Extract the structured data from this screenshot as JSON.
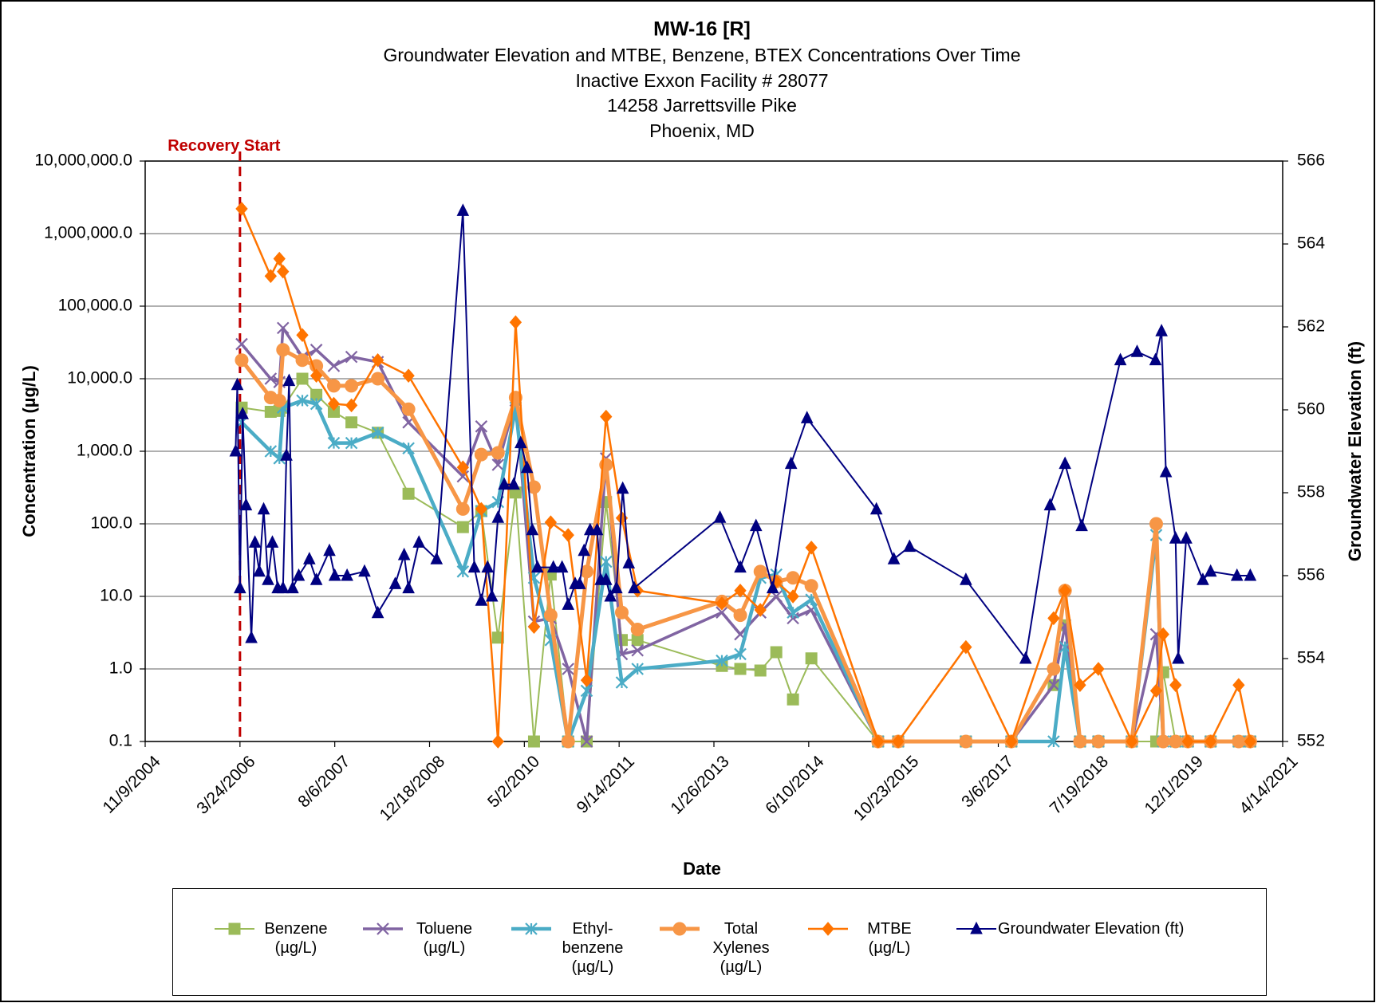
{
  "chart_data": {
    "type": "line",
    "title": "MW-16 [R]",
    "subtitle": [
      "Groundwater Elevation and MTBE, Benzene, BTEX Concentrations Over Time",
      "Inactive Exxon Facility # 28077",
      "14258 Jarrettsville Pike",
      "Phoenix, MD"
    ],
    "x_label": "Date",
    "y_label": "Concentration (µg/L)",
    "y2_label": "Groundwater Elevation (ft)",
    "log_y": true,
    "grid": true,
    "legend": "bottom",
    "annotations": [
      {
        "text": "Recovery Start",
        "x": "3/24/2006",
        "color": "#C00000"
      }
    ],
    "xlim": [
      "11/9/2004",
      "4/14/2021"
    ],
    "xticks": [
      "11/9/2004",
      "3/24/2006",
      "8/6/2007",
      "12/18/2008",
      "5/2/2010",
      "9/14/2011",
      "1/26/2013",
      "6/10/2014",
      "10/23/2015",
      "3/6/2017",
      "7/19/2018",
      "12/1/2019",
      "4/14/2021"
    ],
    "ylim": [
      0.1,
      10000000
    ],
    "yticks": [
      0.1,
      {
        "value": 1,
        "label": "1.0"
      },
      {
        "value": 10,
        "label": "10.0"
      },
      {
        "value": 100,
        "label": "100.0"
      },
      {
        "value": 1000,
        "label": "1,000.0"
      },
      {
        "value": 10000,
        "label": "10,000.0"
      },
      {
        "value": 100000,
        "label": "100,000.0"
      },
      {
        "value": 1000000,
        "label": "1,000,000.0"
      },
      {
        "value": 10000000,
        "label": "10,000,000.0"
      }
    ],
    "y2lim": [
      552,
      566
    ],
    "y2ticks": [
      552,
      554,
      556,
      558,
      560,
      562,
      564,
      566
    ],
    "x": [
      "4/2/2006",
      "9/2/2006",
      "10/18/2006",
      "11/6/2006",
      "2/16/2007",
      "5/1/2007",
      "8/1/2007",
      "11/2/2007",
      "3/20/2008",
      "8/29/2008",
      "6/12/2009",
      "9/17/2009",
      "12/14/2009",
      "3/17/2010",
      "6/22/2010",
      "9/18/2010",
      "12/19/2010",
      "3/27/2011",
      "7/7/2011",
      "9/28/2011",
      "12/20/2011",
      "3/9/2013",
      "6/14/2013",
      "9/28/2013",
      "12/21/2013",
      "3/19/2014",
      "6/24/2014",
      "6/11/2015",
      "9/25/2015",
      "9/16/2016",
      "5/14/2017",
      "12/23/2017",
      "2/21/2018",
      "5/11/2018",
      "8/16/2018",
      "2/8/2019",
      "6/17/2019",
      "7/24/2019",
      "9/27/2019",
      "12/1/2019",
      "3/30/2020",
      "8/25/2020",
      "10/25/2020"
    ],
    "series": [
      {
        "name": "Benzene (µg/L)",
        "color": "#9BBB59",
        "marker": "square",
        "values": [
          4000,
          3500,
          3600,
          4000,
          10000,
          6000,
          3500,
          2500,
          1800,
          260,
          90,
          150,
          2.7,
          270,
          0.1,
          20,
          0.1,
          0.1,
          200,
          2.5,
          2.5,
          1.1,
          1.0,
          0.95,
          1.7,
          0.38,
          1.4,
          0.1,
          0.1,
          0.1,
          0.1,
          0.6,
          4,
          0.1,
          0.1,
          0.1,
          0.1,
          0.9,
          0.1,
          0.1,
          0.1,
          0.1,
          0.1
        ]
      },
      {
        "name": "Toluene (µg/L)",
        "color": "#8064A2",
        "marker": "x",
        "values": [
          30000,
          10000,
          9000,
          50000,
          20000,
          25000,
          15000,
          20000,
          17000,
          2500,
          450,
          2200,
          650,
          5000,
          4.5,
          5,
          1.0,
          0.1,
          800,
          1.6,
          1.8,
          6,
          3,
          6,
          10,
          5,
          6.5,
          0.1,
          0.1,
          0.1,
          0.1,
          0.6,
          4,
          0.1,
          0.1,
          0.1,
          3,
          0.1,
          0.1,
          0.1,
          0.1,
          0.1,
          0.1
        ]
      },
      {
        "name": "Ethyl-benzene (µg/L)",
        "color": "#4BACC6",
        "marker": "asterisk",
        "values": [
          2500,
          1000,
          800,
          4000,
          5000,
          4500,
          1300,
          1300,
          1800,
          1100,
          22,
          150,
          200,
          4000,
          18,
          2.5,
          0.1,
          0.5,
          30,
          0.65,
          1.0,
          1.3,
          1.6,
          18,
          20,
          6,
          9,
          0.1,
          0.1,
          0.1,
          0.1,
          0.1,
          2,
          0.1,
          0.1,
          0.1,
          70,
          0.1,
          0.1,
          0.1,
          0.1,
          0.1,
          0.1
        ]
      },
      {
        "name": "Total Xylenes (µg/L)",
        "color": "#F79646",
        "marker": "circle",
        "values": [
          18000,
          5500,
          5000,
          25000,
          18000,
          15000,
          8000,
          8000,
          10000,
          3800,
          160,
          900,
          950,
          5500,
          320,
          5.5,
          0.1,
          22,
          650,
          6,
          3.5,
          8.5,
          5.5,
          22,
          16,
          18,
          14,
          0.1,
          0.1,
          0.1,
          0.1,
          1.0,
          12,
          0.1,
          0.1,
          0.1,
          100,
          0.1,
          0.1,
          0.1,
          0.1,
          0.1,
          0.1
        ]
      },
      {
        "name": "MTBE (µg/L)",
        "color": "#FF7400",
        "marker": "diamond",
        "values": [
          2200000,
          260000,
          450000,
          300000,
          40000,
          11000,
          4500,
          4300,
          18000,
          11000,
          600,
          160,
          0.1,
          60000,
          3.8,
          105,
          70,
          0.7,
          3000,
          120,
          12,
          8,
          12,
          6.5,
          16,
          10,
          47,
          0.1,
          0.1,
          2,
          0.1,
          5,
          12,
          0.6,
          1.0,
          0.1,
          0.5,
          3,
          0.6,
          0.1,
          0.1,
          0.6,
          0.1
        ]
      },
      {
        "name": "Groundwater Elevation (ft)",
        "color": "#000080",
        "marker": "triangle",
        "axis": "y2",
        "x": [
          "3/1/2006",
          "3/10/2006",
          "3/24/2006",
          "4/7/2006",
          "4/25/2006",
          "5/23/2006",
          "6/11/2006",
          "7/4/2006",
          "7/27/2006",
          "8/19/2006",
          "9/11/2006",
          "10/9/2006",
          "11/6/2006",
          "11/24/2006",
          "12/8/2006",
          "12/27/2006",
          "1/28/2007",
          "3/25/2007",
          "5/1/2007",
          "7/9/2007",
          "8/6/2007",
          "10/10/2007",
          "1/10/2008",
          "3/20/2008",
          "6/20/2008",
          "8/6/2008",
          "8/29/2008",
          "10/23/2008",
          "1/24/2009",
          "6/12/2009",
          "8/11/2009",
          "9/17/2009",
          "10/20/2009",
          "11/12/2009",
          "12/14/2009",
          "1/16/2010",
          "3/7/2010",
          "4/13/2010",
          "5/16/2010",
          "6/13/2010",
          "7/10/2010",
          "10/2/2010",
          "11/17/2010",
          "12/19/2010",
          "1/25/2011",
          "2/18/2011",
          "3/13/2011",
          "4/14/2011",
          "5/21/2011",
          "6/9/2011",
          "7/7/2011",
          "7/30/2011",
          "8/31/2011",
          "10/3/2011",
          "11/4/2011",
          "12/2/2011",
          "2/27/2013",
          "6/14/2013",
          "9/5/2013",
          "12/2/2013",
          "3/9/2014",
          "6/1/2014",
          "6/2/2015",
          "9/2/2015",
          "11/24/2015",
          "9/16/2016",
          "7/28/2017",
          "12/4/2017",
          "2/21/2018",
          "5/20/2018",
          "12/10/2018",
          "3/8/2019",
          "6/13/2019",
          "7/15/2019",
          "8/7/2019",
          "9/27/2019",
          "10/11/2019",
          "11/22/2019",
          "2/18/2020",
          "3/30/2020",
          "8/16/2020",
          "10/25/2020"
        ],
        "values": [
          559.0,
          560.6,
          555.7,
          559.9,
          557.7,
          554.5,
          556.8,
          556.1,
          557.6,
          555.9,
          556.8,
          555.7,
          555.7,
          558.9,
          560.7,
          555.7,
          556.0,
          556.4,
          555.9,
          556.6,
          556.0,
          556.0,
          556.1,
          555.1,
          555.8,
          556.5,
          555.7,
          556.8,
          556.4,
          564.8,
          556.2,
          555.4,
          556.2,
          555.5,
          557.4,
          558.2,
          558.2,
          559.2,
          558.6,
          557.1,
          556.2,
          556.2,
          556.2,
          555.3,
          555.8,
          555.8,
          556.6,
          557.1,
          557.1,
          555.9,
          555.9,
          555.5,
          555.7,
          558.1,
          556.3,
          555.7,
          557.4,
          556.2,
          557.2,
          555.7,
          558.7,
          559.8,
          557.6,
          556.4,
          556.7,
          555.9,
          554.0,
          557.7,
          558.7,
          557.2,
          561.2,
          561.4,
          561.2,
          561.9,
          558.5,
          556.9,
          554.0,
          556.9,
          555.9,
          556.1,
          556.0,
          556.0
        ]
      }
    ]
  }
}
